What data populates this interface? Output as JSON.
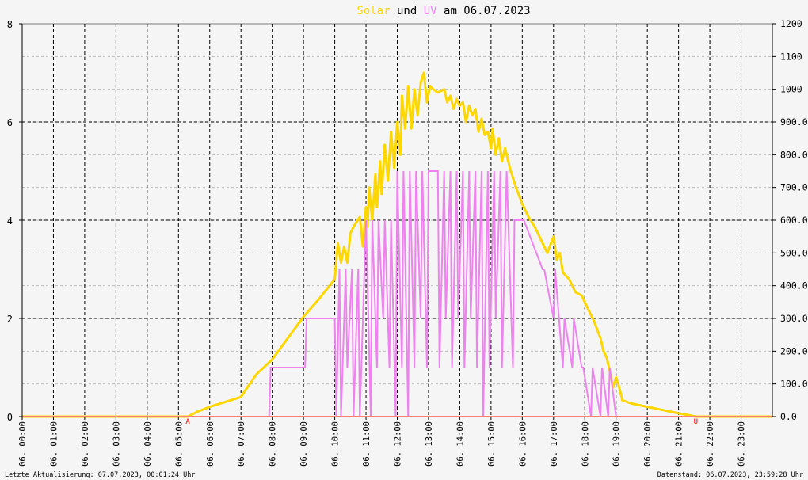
{
  "title": {
    "solar": "Solar",
    "und": "und",
    "uv": "UV",
    "rest": "am 06.07.2023"
  },
  "footer": {
    "left": "Letzte Aktualisierung: 07.07.2023, 00:01:24 Uhr",
    "right": "Datenstand: 06.07.2023, 23:59:28 Uhr"
  },
  "colors": {
    "background": "#f5f5f5",
    "solar": "#ffd700",
    "uv": "#ee82ee",
    "baseline": "#fa8072",
    "marker": "#ff0000",
    "title_text": "#000000",
    "grid_major": "#000000",
    "grid_minor": "#bbbbbb"
  },
  "markers": [
    {
      "label": "A",
      "x": 5.3
    },
    {
      "label": "U",
      "x": 21.55
    }
  ],
  "chart_data": {
    "type": "line",
    "x_unit": "hour of day 06.07.2023",
    "xlim": [
      0,
      24
    ],
    "y_left": {
      "ylim": [
        0,
        8
      ],
      "ticks": [
        0,
        2,
        4,
        6,
        8
      ]
    },
    "y_right": {
      "ylim": [
        0,
        1200
      ],
      "ticks": [
        "0.0",
        "100.0",
        "200.0",
        "300.0",
        "400.0",
        "500.0",
        "600.0",
        "700.0",
        "800.0",
        "900.0",
        "1000",
        "1100",
        "1200"
      ]
    },
    "x_tick_labels": [
      "06. 00:00",
      "06. 01:00",
      "06. 02:00",
      "06. 03:00",
      "06. 04:00",
      "06. 05:00",
      "06. 06:00",
      "06. 07:00",
      "06. 08:00",
      "06. 09:00",
      "06. 10:00",
      "06. 11:00",
      "06. 12:00",
      "06. 13:00",
      "06. 14:00",
      "06. 15:00",
      "06. 16:00",
      "06. 17:00",
      "06. 18:00",
      "06. 19:00",
      "06. 20:00",
      "06. 21:00",
      "06. 22:00",
      "06. 23:00"
    ],
    "grid": true,
    "series": [
      {
        "name": "Solar",
        "axis": "right",
        "x": [
          0,
          5.3,
          5.6,
          6.0,
          6.5,
          7.0,
          7.1,
          7.5,
          8.0,
          8.5,
          9.0,
          9.5,
          10.0,
          10.1,
          10.2,
          10.3,
          10.4,
          10.5,
          10.6,
          10.8,
          10.9,
          11.0,
          11.05,
          11.1,
          11.2,
          11.3,
          11.35,
          11.45,
          11.5,
          11.6,
          11.7,
          11.8,
          11.9,
          12.0,
          12.1,
          12.15,
          12.25,
          12.35,
          12.45,
          12.55,
          12.65,
          12.75,
          12.85,
          12.95,
          13.05,
          13.15,
          13.3,
          13.5,
          13.6,
          13.7,
          13.8,
          13.9,
          14.0,
          14.1,
          14.2,
          14.3,
          14.4,
          14.5,
          14.6,
          14.7,
          14.8,
          14.9,
          15.0,
          15.05,
          15.15,
          15.25,
          15.35,
          15.45,
          15.6,
          15.8,
          16.0,
          16.2,
          16.4,
          16.6,
          16.8,
          17.0,
          17.1,
          17.2,
          17.3,
          17.5,
          17.7,
          17.9,
          18.1,
          18.3,
          18.5,
          18.6,
          18.7,
          18.8,
          18.9,
          19.0,
          19.1,
          19.2,
          19.5,
          20.0,
          20.5,
          21.0,
          21.3,
          21.55,
          24
        ],
        "y": [
          0,
          0,
          15,
          30,
          45,
          60,
          75,
          130,
          175,
          240,
          305,
          360,
          420,
          530,
          470,
          520,
          470,
          560,
          580,
          610,
          520,
          640,
          580,
          700,
          600,
          740,
          640,
          780,
          680,
          830,
          720,
          870,
          760,
          900,
          800,
          980,
          880,
          1010,
          880,
          1000,
          920,
          1020,
          1050,
          960,
          1010,
          1000,
          990,
          1000,
          960,
          980,
          940,
          970,
          950,
          960,
          900,
          950,
          920,
          940,
          870,
          910,
          860,
          870,
          820,
          880,
          800,
          850,
          780,
          820,
          760,
          700,
          650,
          610,
          580,
          540,
          500,
          550,
          480,
          500,
          440,
          420,
          380,
          370,
          330,
          290,
          240,
          200,
          180,
          140,
          90,
          120,
          90,
          50,
          40,
          30,
          20,
          10,
          5,
          0,
          0
        ]
      },
      {
        "name": "UV",
        "axis": "left",
        "x": [
          0,
          7.9,
          7.95,
          9.05,
          9.1,
          10.0,
          10.05,
          10.15,
          10.2,
          10.35,
          10.4,
          10.55,
          10.6,
          10.75,
          10.8,
          10.95,
          11.0,
          11.15,
          11.2,
          11.35,
          11.4,
          11.55,
          11.6,
          11.75,
          11.8,
          11.95,
          12.0,
          12.15,
          12.2,
          12.35,
          12.4,
          12.55,
          12.6,
          12.75,
          12.8,
          12.95,
          13.0,
          13.3,
          13.35,
          13.5,
          13.55,
          13.7,
          13.75,
          13.9,
          13.95,
          14.1,
          14.15,
          14.3,
          14.35,
          14.5,
          14.55,
          14.7,
          14.75,
          14.9,
          14.95,
          15.1,
          15.15,
          15.3,
          15.35,
          15.5,
          15.55,
          15.7,
          15.75,
          16.0,
          16.05,
          16.65,
          16.7,
          17.0,
          17.05,
          17.3,
          17.35,
          17.6,
          17.65,
          17.9,
          17.95,
          18.2,
          18.25,
          18.5,
          18.55,
          18.75,
          18.8,
          19.0,
          19.05,
          19.2,
          19.25,
          24
        ],
        "y": [
          0,
          0,
          1,
          1,
          2,
          2,
          0,
          3,
          0,
          3,
          1,
          3,
          0,
          3,
          0,
          3,
          4,
          0,
          4,
          1,
          4,
          2,
          4,
          1,
          4,
          0,
          5,
          1,
          5,
          0,
          5,
          1,
          5,
          2,
          5,
          1,
          5,
          5,
          1,
          5,
          2,
          5,
          1,
          5,
          2,
          5,
          1,
          5,
          2,
          5,
          1,
          5,
          0,
          5,
          1,
          5,
          2,
          5,
          1,
          5,
          4,
          1,
          4,
          4,
          4,
          3,
          3,
          2,
          3,
          1,
          2,
          1,
          2,
          1,
          1,
          0,
          1,
          0,
          1,
          0,
          1,
          0,
          0,
          0,
          0,
          0
        ]
      }
    ]
  }
}
